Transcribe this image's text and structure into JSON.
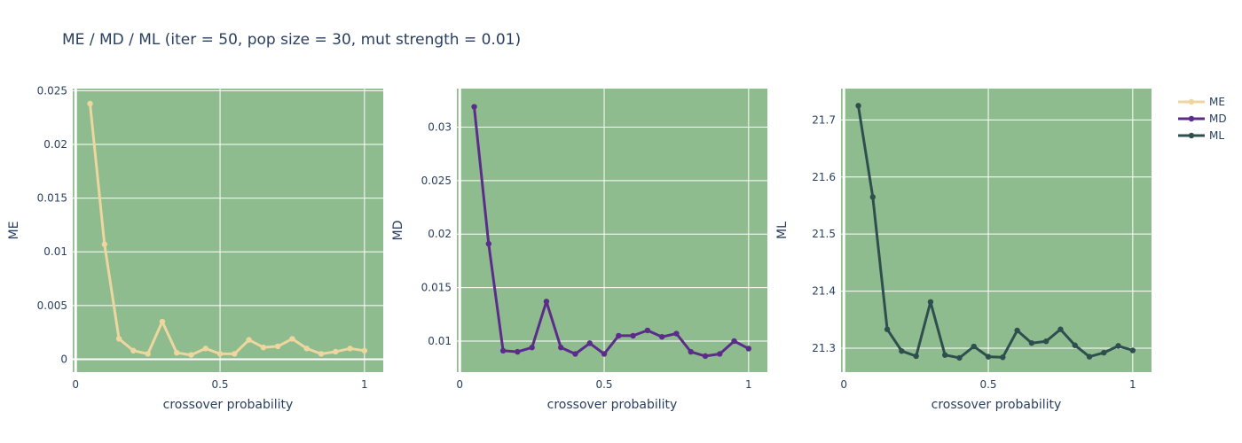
{
  "title": "ME / MD / ML (iter = 50, pop size = 30, mut strength = 0.01)",
  "colors": {
    "plot_bg": "#8fbc8f",
    "grid": "#ffffff",
    "text": "#2a3f5f"
  },
  "chart_data": [
    {
      "type": "line",
      "xlabel": "crossover probability",
      "ylabel": "ME",
      "xlim": [
        -0.01,
        1.065
      ],
      "ylim": [
        -0.0012,
        0.0252
      ],
      "xticks": [
        0,
        0.5,
        1
      ],
      "xtick_labels": [
        "0",
        "0.5",
        "1"
      ],
      "yticks": [
        0,
        0.005,
        0.01,
        0.015,
        0.02,
        0.025
      ],
      "ytick_labels": [
        "0",
        "0.005",
        "0.01",
        "0.015",
        "0.02",
        "0.025"
      ],
      "zero_line": true,
      "series": [
        {
          "name": "ME",
          "color": "#eed69f",
          "x": [
            0.05,
            0.1,
            0.15,
            0.2,
            0.25,
            0.3,
            0.35,
            0.4,
            0.45,
            0.5,
            0.55,
            0.6,
            0.65,
            0.7,
            0.75,
            0.8,
            0.85,
            0.9,
            0.95,
            1.0
          ],
          "y": [
            0.0238,
            0.0107,
            0.0019,
            0.0008,
            0.0005,
            0.0035,
            0.0006,
            0.0004,
            0.001,
            0.0005,
            0.0005,
            0.0018,
            0.0011,
            0.0012,
            0.0019,
            0.001,
            0.0005,
            0.0007,
            0.001,
            0.0008
          ]
        }
      ]
    },
    {
      "type": "line",
      "xlabel": "crossover probability",
      "ylabel": "MD",
      "xlim": [
        -0.01,
        1.065
      ],
      "ylim": [
        0.0071,
        0.0336
      ],
      "xticks": [
        0,
        0.5,
        1
      ],
      "xtick_labels": [
        "0",
        "0.5",
        "1"
      ],
      "yticks": [
        0.01,
        0.015,
        0.02,
        0.025,
        0.03
      ],
      "ytick_labels": [
        "0.01",
        "0.015",
        "0.02",
        "0.025",
        "0.03"
      ],
      "zero_line": false,
      "series": [
        {
          "name": "MD",
          "color": "#5b2c8a",
          "x": [
            0.05,
            0.1,
            0.15,
            0.2,
            0.25,
            0.3,
            0.35,
            0.4,
            0.45,
            0.5,
            0.55,
            0.6,
            0.65,
            0.7,
            0.75,
            0.8,
            0.85,
            0.9,
            0.95,
            1.0
          ],
          "y": [
            0.0319,
            0.0191,
            0.0091,
            0.009,
            0.0094,
            0.0137,
            0.0094,
            0.0088,
            0.0098,
            0.0088,
            0.0105,
            0.0105,
            0.011,
            0.0104,
            0.0107,
            0.009,
            0.0086,
            0.0088,
            0.01,
            0.0093
          ]
        }
      ]
    },
    {
      "type": "line",
      "xlabel": "crossover probability",
      "ylabel": "ML",
      "xlim": [
        -0.01,
        1.065
      ],
      "ylim": [
        21.258,
        21.755
      ],
      "xticks": [
        0,
        0.5,
        1
      ],
      "xtick_labels": [
        "0",
        "0.5",
        "1"
      ],
      "yticks": [
        21.3,
        21.4,
        21.5,
        21.6,
        21.7
      ],
      "ytick_labels": [
        "21.3",
        "21.4",
        "21.5",
        "21.6",
        "21.7"
      ],
      "zero_line": false,
      "series": [
        {
          "name": "ML",
          "color": "#2f4f4f",
          "x": [
            0.05,
            0.1,
            0.15,
            0.2,
            0.25,
            0.3,
            0.35,
            0.4,
            0.45,
            0.5,
            0.55,
            0.6,
            0.65,
            0.7,
            0.75,
            0.8,
            0.85,
            0.9,
            0.95,
            1.0
          ],
          "y": [
            21.725,
            21.565,
            21.333,
            21.295,
            21.286,
            21.381,
            21.288,
            21.283,
            21.303,
            21.285,
            21.284,
            21.331,
            21.309,
            21.312,
            21.333,
            21.305,
            21.285,
            21.292,
            21.304,
            21.296
          ]
        }
      ]
    }
  ],
  "legend": {
    "placement": "top-right",
    "items": [
      {
        "label": "ME",
        "color": "#eed69f"
      },
      {
        "label": "MD",
        "color": "#5b2c8a"
      },
      {
        "label": "ML",
        "color": "#2f4f4f"
      }
    ]
  }
}
